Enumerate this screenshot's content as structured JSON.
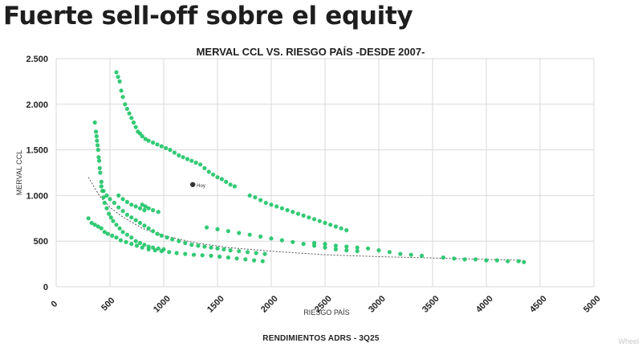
{
  "slide": {
    "title": "Fuerte sell-off sobre el equity",
    "footer": "RENDIMIENTOS ADRS - 3Q25",
    "watermark": "Wheel"
  },
  "colors": {
    "points": "#1dc466",
    "trendline": "#555555",
    "grid": "#d9d9d9",
    "marker": "#333333"
  },
  "chart_data": {
    "type": "scatter",
    "title": "MERVAL CCL VS. RIESGO PAÍS -DESDE 2007-",
    "xlabel": "RIESGO PAÍS",
    "ylabel": "MERVAL CCL",
    "xlim": [
      0,
      5000
    ],
    "ylim": [
      0,
      2500
    ],
    "x_ticks": [
      0,
      500,
      1000,
      1500,
      2000,
      2500,
      3000,
      3500,
      4000,
      4500,
      5000
    ],
    "y_ticks": [
      0,
      500,
      1000,
      1500,
      2000,
      2500
    ],
    "x_tick_labels": [
      "0",
      "500",
      "1000",
      "1500",
      "2000",
      "2500",
      "3000",
      "3500",
      "4000",
      "4500",
      "5000"
    ],
    "y_tick_labels": [
      "0",
      "500",
      "1.000",
      "1.500",
      "2.000",
      "2.500"
    ],
    "grid": true,
    "series": [
      {
        "name": "Merval CCL vs Riesgo País",
        "x": [
          300,
          330,
          360,
          390,
          420,
          450,
          480,
          520,
          560,
          600,
          650,
          700,
          750,
          800,
          860,
          920,
          980,
          1050,
          1120,
          1200,
          1280,
          1360,
          1440,
          1520,
          1600,
          1680,
          1760,
          1840,
          1920,
          360,
          370,
          375,
          380,
          385,
          390,
          395,
          400,
          405,
          410,
          420,
          430,
          440,
          450,
          470,
          490,
          510,
          530,
          560,
          590,
          620,
          660,
          700,
          740,
          780,
          820,
          860,
          900,
          950,
          1000,
          420,
          440,
          470,
          500,
          540,
          580,
          620,
          660,
          700,
          740,
          780,
          820,
          860,
          900,
          940,
          980,
          1030,
          1080,
          1140,
          1200,
          1260,
          1320,
          1380,
          1440,
          1500,
          1560,
          1620,
          1700,
          1780,
          1860,
          1940,
          560,
          575,
          590,
          605,
          620,
          640,
          660,
          680,
          700,
          720,
          740,
          760,
          780,
          800,
          830,
          860,
          900,
          940,
          980,
          1020,
          1060,
          1100,
          1140,
          1180,
          1220,
          1260,
          1300,
          1340,
          1380,
          1420,
          1460,
          1500,
          1540,
          1580,
          1620,
          1660,
          1800,
          1850,
          1900,
          1950,
          2000,
          2050,
          2100,
          2150,
          2200,
          2250,
          2300,
          2350,
          2400,
          2450,
          2500,
          2550,
          2600,
          2650,
          2700,
          1400,
          1500,
          1600,
          1700,
          1800,
          1900,
          2000,
          2100,
          2200,
          2300,
          2400,
          2500,
          2600,
          2700,
          2800,
          2400,
          2500,
          2600,
          2700,
          2800,
          2900,
          3000,
          3100,
          3200,
          3300,
          3400,
          3600,
          3700,
          3800,
          3900,
          4000,
          4100,
          4200,
          4300,
          4350,
          800,
          830,
          860,
          900,
          950,
          580,
          620,
          660,
          700,
          740,
          780,
          820
        ],
        "y": [
          750,
          700,
          680,
          660,
          640,
          600,
          580,
          560,
          540,
          510,
          490,
          470,
          450,
          430,
          410,
          400,
          390,
          380,
          370,
          360,
          350,
          345,
          340,
          330,
          320,
          310,
          300,
          290,
          280,
          1800,
          1700,
          1650,
          1600,
          1550,
          1500,
          1420,
          1380,
          1300,
          1250,
          1150,
          1050,
          980,
          920,
          860,
          800,
          760,
          720,
          680,
          640,
          600,
          570,
          540,
          500,
          480,
          460,
          440,
          430,
          420,
          410,
          1100,
          1050,
          1000,
          960,
          920,
          870,
          830,
          790,
          760,
          730,
          700,
          670,
          640,
          610,
          580,
          560,
          540,
          520,
          500,
          480,
          460,
          450,
          440,
          430,
          420,
          410,
          400,
          390,
          380,
          370,
          360,
          2350,
          2300,
          2250,
          2150,
          2080,
          2000,
          1950,
          1900,
          1850,
          1800,
          1750,
          1700,
          1680,
          1650,
          1620,
          1600,
          1580,
          1560,
          1540,
          1520,
          1500,
          1470,
          1440,
          1420,
          1400,
          1380,
          1360,
          1340,
          1300,
          1260,
          1230,
          1200,
          1180,
          1150,
          1120,
          1100,
          1000,
          980,
          950,
          920,
          900,
          880,
          860,
          840,
          820,
          800,
          780,
          760,
          740,
          720,
          700,
          680,
          660,
          640,
          620,
          650,
          630,
          610,
          590,
          570,
          550,
          530,
          510,
          490,
          470,
          450,
          430,
          410,
          400,
          390,
          480,
          470,
          450,
          440,
          430,
          420,
          400,
          380,
          360,
          350,
          340,
          320,
          310,
          300,
          300,
          290,
          290,
          280,
          280,
          270,
          900,
          880,
          860,
          840,
          820,
          1000,
          960,
          930,
          900,
          880,
          860,
          840
        ]
      }
    ],
    "trendline": {
      "type": "power",
      "x": [
        300,
        400,
        500,
        600,
        800,
        1000,
        1300,
        1600,
        2000,
        2500,
        3000,
        3500,
        4000,
        4350
      ],
      "y": [
        1200,
        1000,
        870,
        780,
        640,
        560,
        480,
        430,
        390,
        350,
        330,
        315,
        300,
        290
      ]
    },
    "annotation": {
      "label": "Hoy",
      "x": 1270,
      "y": 1120
    }
  }
}
